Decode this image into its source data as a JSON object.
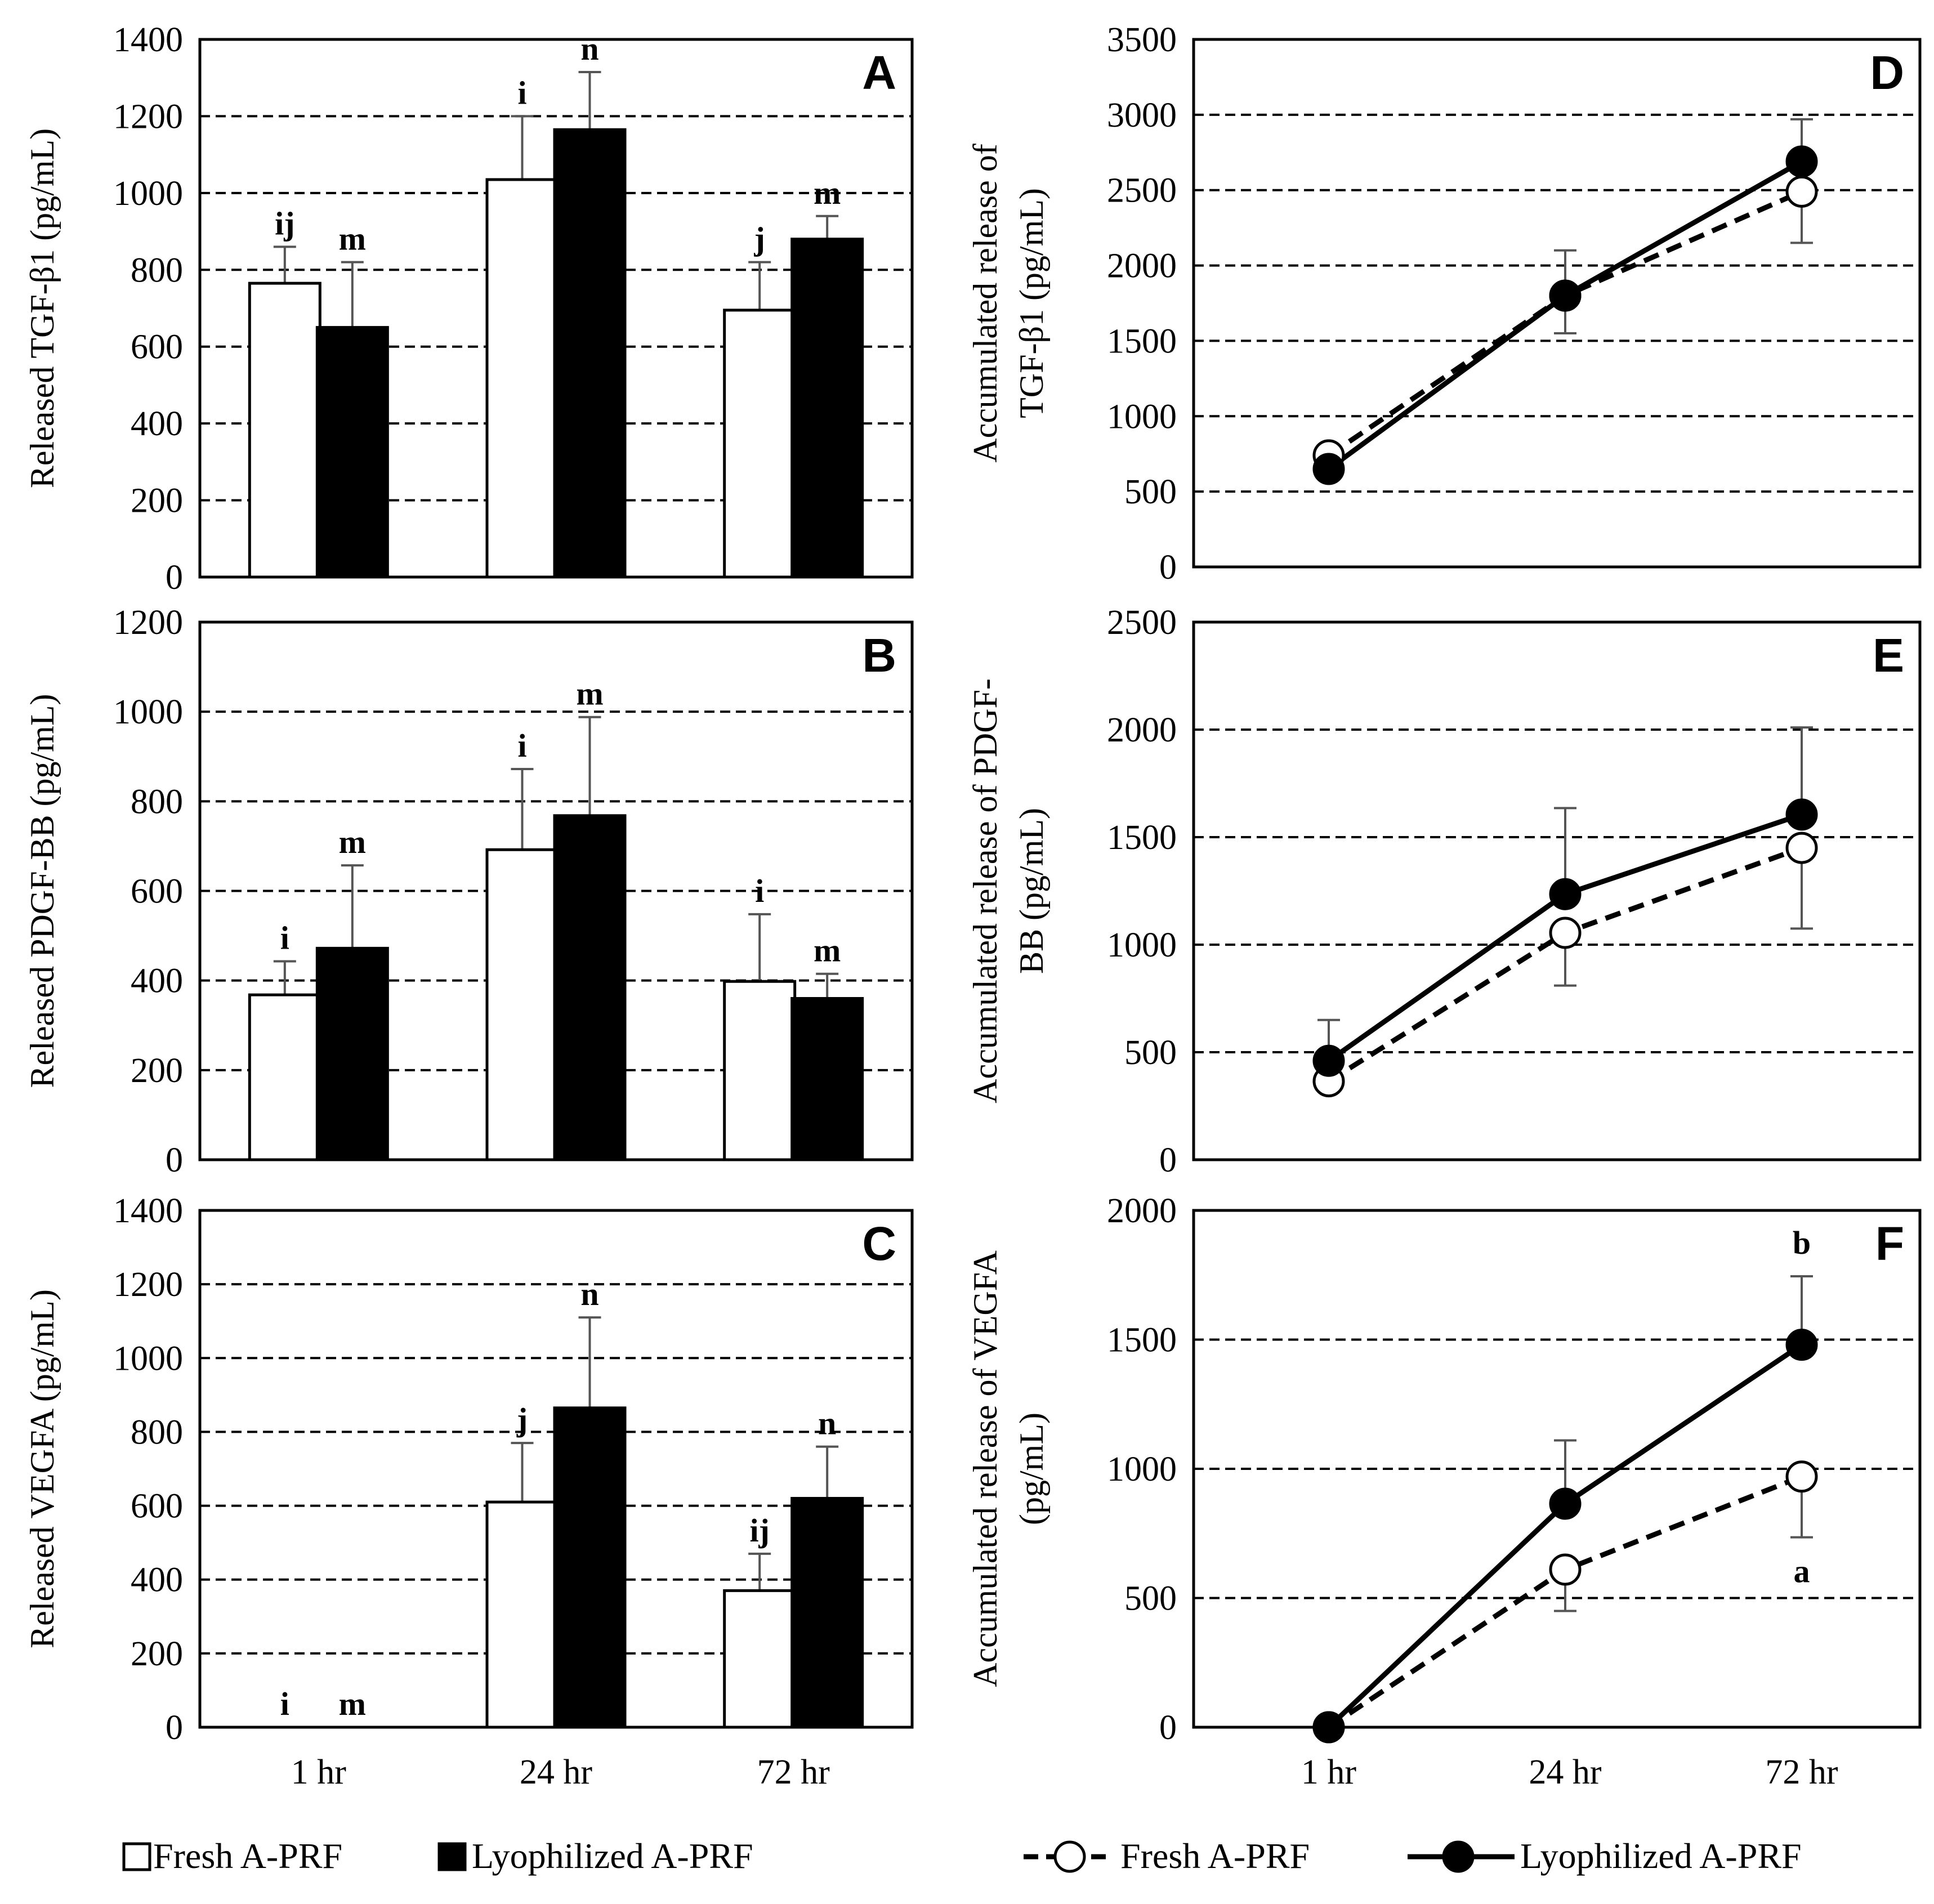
{
  "legends": {
    "bar": {
      "fresh": "Fresh A-PRF",
      "lyophilized": "Lyophilized A-PRF"
    },
    "line": {
      "fresh": "Fresh A-PRF",
      "lyophilized": "Lyophilized A-PRF"
    }
  },
  "chart_data": [
    {
      "panel": "A",
      "type": "bar",
      "ylabel": "Released TGF-β1 (pg/mL)",
      "ylim": [
        0,
        1400
      ],
      "ytick_step": 200,
      "grid": true,
      "categories": [
        "1 hr",
        "24 hr",
        "72 hr"
      ],
      "show_xticks": false,
      "series": [
        {
          "name": "Fresh A-PRF",
          "values": [
            765,
            1035,
            695
          ],
          "errors": [
            95,
            165,
            125
          ],
          "labels": [
            "ij",
            "i",
            "j"
          ]
        },
        {
          "name": "Lyophilized A-PRF",
          "values": [
            650,
            1165,
            880
          ],
          "errors": [
            170,
            150,
            60
          ],
          "labels": [
            "m",
            "n",
            "m"
          ]
        }
      ]
    },
    {
      "panel": "B",
      "type": "bar",
      "ylabel": "Released PDGF-BB (pg/mL)",
      "ylim": [
        0,
        1200
      ],
      "ytick_step": 200,
      "grid": true,
      "categories": [
        "1 hr",
        "24 hr",
        "72 hr"
      ],
      "show_xticks": false,
      "series": [
        {
          "name": "Fresh A-PRF",
          "values": [
            368,
            692,
            398
          ],
          "errors": [
            75,
            180,
            150
          ],
          "labels": [
            "i",
            "i",
            "i"
          ]
        },
        {
          "name": "Lyophilized A-PRF",
          "values": [
            472,
            768,
            360
          ],
          "errors": [
            185,
            220,
            55
          ],
          "labels": [
            "m",
            "m",
            "m"
          ]
        }
      ]
    },
    {
      "panel": "C",
      "type": "bar",
      "ylabel": "Released VEGFA (pg/mL)",
      "ylim": [
        0,
        1400
      ],
      "ytick_step": 200,
      "grid": true,
      "categories": [
        "1 hr",
        "24 hr",
        "72 hr"
      ],
      "show_xticks": true,
      "series": [
        {
          "name": "Fresh A-PRF",
          "values": [
            0,
            610,
            370
          ],
          "errors": [
            0,
            160,
            100
          ],
          "labels": [
            "i",
            "j",
            "ij"
          ]
        },
        {
          "name": "Lyophilized A-PRF",
          "values": [
            0,
            865,
            620
          ],
          "errors": [
            0,
            245,
            140
          ],
          "labels": [
            "m",
            "n",
            "n"
          ]
        }
      ]
    },
    {
      "panel": "D",
      "type": "line",
      "ylabel_lines": [
        "Accumulated release of",
        "TGF-β1 (pg/mL)"
      ],
      "ylim": [
        0,
        3500
      ],
      "ytick_step": 500,
      "grid": true,
      "categories": [
        "1 hr",
        "24 hr",
        "72 hr"
      ],
      "show_xticks": false,
      "series": [
        {
          "name": "Fresh A-PRF",
          "style": "dashed",
          "marker": "open-circle",
          "values": [
            740,
            1800,
            2490
          ],
          "errors_up": [
            0,
            0,
            0
          ],
          "errors_down": [
            0,
            250,
            340
          ],
          "labels": [
            "",
            "",
            ""
          ]
        },
        {
          "name": "Lyophilized A-PRF",
          "style": "solid",
          "marker": "filled-circle",
          "values": [
            650,
            1800,
            2690
          ],
          "errors_up": [
            0,
            300,
            280
          ],
          "errors_down": [
            0,
            0,
            0
          ],
          "labels": [
            "",
            "",
            ""
          ]
        }
      ]
    },
    {
      "panel": "E",
      "type": "line",
      "ylabel_lines": [
        "Accumulated release of  PDGF-",
        "BB (pg/mL)"
      ],
      "ylim": [
        0,
        2500
      ],
      "ytick_step": 500,
      "grid": true,
      "categories": [
        "1 hr",
        "24 hr",
        "72 hr"
      ],
      "show_xticks": false,
      "series": [
        {
          "name": "Fresh A-PRF",
          "style": "dashed",
          "marker": "open-circle",
          "values": [
            365,
            1055,
            1450
          ],
          "errors_up": [
            0,
            0,
            0
          ],
          "errors_down": [
            0,
            245,
            375
          ],
          "labels": [
            "",
            "",
            ""
          ]
        },
        {
          "name": "Lyophilized A-PRF",
          "style": "solid",
          "marker": "filled-circle",
          "values": [
            460,
            1235,
            1605
          ],
          "errors_up": [
            190,
            400,
            405
          ],
          "errors_down": [
            0,
            0,
            0
          ],
          "labels": [
            "",
            "",
            ""
          ]
        }
      ]
    },
    {
      "panel": "F",
      "type": "line",
      "ylabel_lines": [
        "Accumulated release of  VEGFA",
        "(pg/mL)"
      ],
      "ylim": [
        0,
        2000
      ],
      "ytick_step": 500,
      "grid": true,
      "categories": [
        "1 hr",
        "24 hr",
        "72 hr"
      ],
      "show_xticks": true,
      "series": [
        {
          "name": "Fresh A-PRF",
          "style": "dashed",
          "marker": "open-circle",
          "values": [
            0,
            610,
            970
          ],
          "errors_up": [
            0,
            0,
            0
          ],
          "errors_down": [
            0,
            160,
            235
          ],
          "labels": [
            "",
            "",
            "a"
          ]
        },
        {
          "name": "Lyophilized A-PRF",
          "style": "solid",
          "marker": "filled-circle",
          "values": [
            0,
            865,
            1480
          ],
          "errors_up": [
            0,
            245,
            265
          ],
          "errors_down": [
            0,
            0,
            0
          ],
          "labels": [
            "",
            "",
            "b"
          ]
        }
      ]
    }
  ]
}
